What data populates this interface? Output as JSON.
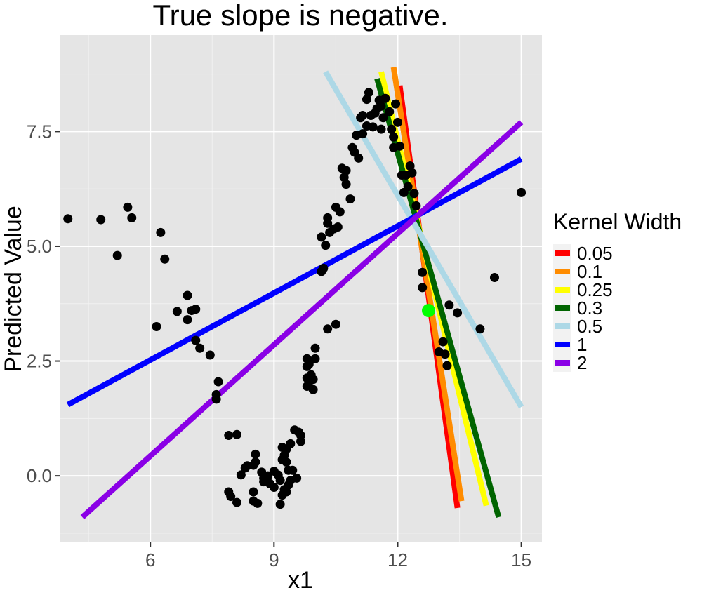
{
  "chart_data": {
    "type": "scatter",
    "title": "True slope is negative.",
    "xlabel": "x1",
    "ylabel": "Predicted Value",
    "xlim": [
      3.8,
      15.5
    ],
    "ylim": [
      -1.45,
      9.6
    ],
    "x_ticks": [
      6,
      9,
      12,
      15
    ],
    "x_tick_labels": [
      "6",
      "9",
      "12",
      "15"
    ],
    "y_ticks": [
      0,
      2.5,
      5,
      7.5
    ],
    "y_tick_labels": [
      "0.0",
      "2.5",
      "5.0",
      "7.5"
    ],
    "grid": true,
    "legend": {
      "title": "Kernel Width",
      "position": "right",
      "entries": [
        {
          "label": "0.05",
          "color": "#ff0000"
        },
        {
          "label": "0.1",
          "color": "#ff8c00"
        },
        {
          "label": "0.25",
          "color": "#ffff00"
        },
        {
          "label": "0.3",
          "color": "#006400"
        },
        {
          "label": "0.5",
          "color": "#add8e6"
        },
        {
          "label": "1",
          "color": "#0000ff"
        },
        {
          "label": "2",
          "color": "#8a00e6"
        }
      ]
    },
    "highlight_point": {
      "x": 12.75,
      "y": 3.6,
      "color": "#00ff00"
    },
    "lines": [
      {
        "kernel_width": "0.05",
        "color": "#ff0000",
        "x": [
          12.05,
          13.45
        ],
        "y": [
          8.5,
          -0.7
        ]
      },
      {
        "kernel_width": "0.1",
        "color": "#ff8c00",
        "x": [
          11.9,
          13.55
        ],
        "y": [
          8.9,
          -0.55
        ]
      },
      {
        "kernel_width": "0.25",
        "color": "#ffff00",
        "x": [
          11.6,
          14.15
        ],
        "y": [
          8.8,
          -0.65
        ]
      },
      {
        "kernel_width": "0.3",
        "color": "#006400",
        "x": [
          11.5,
          14.45
        ],
        "y": [
          8.65,
          -0.9
        ]
      },
      {
        "kernel_width": "0.5",
        "color": "#add8e6",
        "x": [
          10.25,
          15.0
        ],
        "y": [
          8.8,
          1.5
        ]
      },
      {
        "kernel_width": "1",
        "color": "#0000ff",
        "x": [
          4.0,
          15.0
        ],
        "y": [
          1.55,
          6.9
        ]
      },
      {
        "kernel_width": "2",
        "color": "#8a00e6",
        "x": [
          4.35,
          15.0
        ],
        "y": [
          -0.9,
          7.7
        ]
      }
    ],
    "points": [
      [
        4.0,
        5.6
      ],
      [
        4.8,
        5.58
      ],
      [
        5.2,
        4.8
      ],
      [
        5.45,
        5.85
      ],
      [
        5.55,
        5.62
      ],
      [
        6.25,
        5.3
      ],
      [
        6.35,
        4.72
      ],
      [
        6.15,
        3.25
      ],
      [
        6.65,
        3.58
      ],
      [
        6.9,
        3.93
      ],
      [
        6.9,
        3.4
      ],
      [
        7.0,
        3.6
      ],
      [
        7.1,
        3.63
      ],
      [
        7.1,
        2.95
      ],
      [
        7.2,
        2.78
      ],
      [
        7.45,
        2.63
      ],
      [
        7.6,
        1.77
      ],
      [
        7.65,
        2.05
      ],
      [
        7.6,
        1.67
      ],
      [
        7.9,
        0.88
      ],
      [
        8.1,
        0.9
      ],
      [
        7.9,
        -0.35
      ],
      [
        7.95,
        -0.45
      ],
      [
        8.1,
        -0.58
      ],
      [
        8.2,
        0.02
      ],
      [
        8.3,
        0.17
      ],
      [
        8.35,
        0.22
      ],
      [
        8.5,
        0.23
      ],
      [
        8.55,
        0.47
      ],
      [
        8.55,
        0.3
      ],
      [
        8.5,
        -0.35
      ],
      [
        8.5,
        -0.55
      ],
      [
        8.6,
        -0.6
      ],
      [
        8.7,
        0.08
      ],
      [
        8.75,
        -0.05
      ],
      [
        8.75,
        -0.13
      ],
      [
        8.85,
        0.0
      ],
      [
        8.9,
        -0.17
      ],
      [
        9.0,
        0.1
      ],
      [
        9.0,
        -0.25
      ],
      [
        9.1,
        0.02
      ],
      [
        9.15,
        -0.1
      ],
      [
        9.2,
        0.35
      ],
      [
        9.2,
        0.62
      ],
      [
        9.25,
        0.45
      ],
      [
        9.3,
        0.58
      ],
      [
        9.3,
        0.3
      ],
      [
        9.35,
        0.12
      ],
      [
        9.4,
        0.7
      ],
      [
        9.4,
        -0.1
      ],
      [
        9.35,
        -0.2
      ],
      [
        9.15,
        -0.62
      ],
      [
        9.25,
        -0.3
      ],
      [
        9.3,
        -0.35
      ],
      [
        9.45,
        0.12
      ],
      [
        9.5,
        1.0
      ],
      [
        9.6,
        0.95
      ],
      [
        9.65,
        0.75
      ],
      [
        9.65,
        0.88
      ],
      [
        9.55,
        -0.05
      ],
      [
        9.2,
        -0.42
      ],
      [
        9.8,
        2.55
      ],
      [
        9.8,
        2.38
      ],
      [
        9.8,
        2.13
      ],
      [
        9.8,
        1.95
      ],
      [
        9.85,
        2.05
      ],
      [
        9.9,
        2.2
      ],
      [
        9.95,
        2.1
      ],
      [
        9.95,
        1.88
      ],
      [
        10.0,
        2.55
      ],
      [
        10.0,
        2.78
      ],
      [
        9.85,
        2.43
      ],
      [
        10.15,
        4.45
      ],
      [
        10.2,
        4.52
      ],
      [
        10.15,
        5.2
      ],
      [
        10.25,
        5.02
      ],
      [
        10.3,
        5.62
      ],
      [
        10.3,
        5.5
      ],
      [
        10.35,
        5.3
      ],
      [
        10.45,
        5.38
      ],
      [
        10.5,
        5.85
      ],
      [
        10.55,
        5.42
      ],
      [
        10.6,
        5.75
      ],
      [
        10.3,
        3.2
      ],
      [
        10.5,
        3.3
      ],
      [
        10.65,
        6.7
      ],
      [
        10.7,
        6.5
      ],
      [
        10.75,
        6.65
      ],
      [
        10.75,
        6.35
      ],
      [
        10.85,
        6.03
      ],
      [
        10.9,
        7.15
      ],
      [
        10.95,
        7.05
      ],
      [
        11.0,
        7.42
      ],
      [
        11.05,
        6.92
      ],
      [
        11.1,
        7.8
      ],
      [
        11.15,
        7.45
      ],
      [
        11.15,
        7.85
      ],
      [
        11.25,
        8.2
      ],
      [
        11.25,
        7.62
      ],
      [
        11.3,
        8.35
      ],
      [
        11.35,
        7.85
      ],
      [
        11.4,
        7.6
      ],
      [
        11.45,
        7.9
      ],
      [
        11.5,
        8.0
      ],
      [
        11.55,
        8.18
      ],
      [
        11.6,
        8.05
      ],
      [
        11.65,
        7.8
      ],
      [
        11.6,
        7.55
      ],
      [
        11.7,
        8.22
      ],
      [
        11.8,
        7.93
      ],
      [
        11.85,
        7.55
      ],
      [
        11.9,
        7.38
      ],
      [
        11.9,
        7.15
      ],
      [
        11.95,
        8.1
      ],
      [
        12.0,
        7.7
      ],
      [
        12.05,
        7.18
      ],
      [
        12.1,
        6.55
      ],
      [
        12.15,
        6.17
      ],
      [
        12.2,
        6.55
      ],
      [
        12.25,
        6.3
      ],
      [
        12.3,
        6.75
      ],
      [
        12.35,
        6.6
      ],
      [
        12.4,
        6.15
      ],
      [
        12.45,
        5.88
      ],
      [
        12.6,
        4.43
      ],
      [
        12.6,
        4.1
      ],
      [
        13.0,
        2.7
      ],
      [
        13.1,
        2.92
      ],
      [
        13.15,
        2.65
      ],
      [
        13.2,
        2.4
      ],
      [
        13.25,
        3.72
      ],
      [
        13.45,
        3.55
      ],
      [
        14.0,
        3.2
      ],
      [
        14.35,
        4.32
      ],
      [
        15.0,
        6.17
      ]
    ]
  }
}
